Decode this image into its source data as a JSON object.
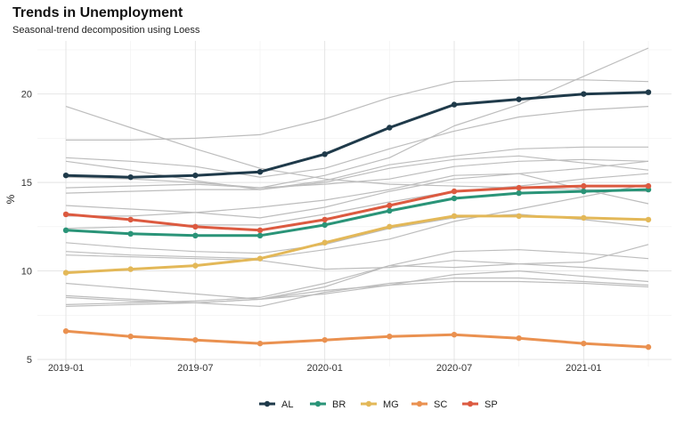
{
  "chart_data": {
    "type": "line",
    "title": "Trends in Unemployment",
    "subtitle": "Seasonal-trend decomposition using Loess",
    "xlabel": "",
    "ylabel": "%",
    "x": [
      "2019-01",
      "2019-04",
      "2019-07",
      "2019-10",
      "2020-01",
      "2020-04",
      "2020-07",
      "2020-10",
      "2021-01",
      "2021-04"
    ],
    "x_ticks": [
      "2019-01",
      "2019-07",
      "2020-01",
      "2020-07",
      "2021-01"
    ],
    "y_ticks": [
      5,
      10,
      15,
      20
    ],
    "ylim": [
      4.6,
      23.0
    ],
    "grid": true,
    "legend_position": "bottom",
    "series": [
      {
        "name": "AL",
        "color": "#1f3a4a",
        "values": [
          15.4,
          15.3,
          15.4,
          15.6,
          16.6,
          18.1,
          19.4,
          19.7,
          20.0,
          20.1
        ]
      },
      {
        "name": "BR",
        "color": "#2a9478",
        "values": [
          12.3,
          12.1,
          12.0,
          12.0,
          12.6,
          13.4,
          14.1,
          14.4,
          14.5,
          14.6
        ]
      },
      {
        "name": "MG",
        "color": "#e3b858",
        "values": [
          9.9,
          10.1,
          10.3,
          10.7,
          11.6,
          12.5,
          13.1,
          13.1,
          13.0,
          12.9
        ]
      },
      {
        "name": "SC",
        "color": "#ea9150",
        "values": [
          6.6,
          6.3,
          6.1,
          5.9,
          6.1,
          6.3,
          6.4,
          6.2,
          5.9,
          5.7
        ]
      },
      {
        "name": "SP",
        "color": "#dc5a40",
        "values": [
          13.2,
          12.9,
          12.5,
          12.3,
          12.9,
          13.7,
          14.5,
          14.7,
          14.8,
          14.8
        ]
      }
    ],
    "background_series": [
      [
        19.3,
        18.1,
        16.9,
        15.8,
        15.2,
        14.9,
        14.8,
        14.7,
        14.6,
        14.5
      ],
      [
        17.4,
        17.4,
        17.5,
        17.7,
        18.6,
        19.8,
        20.7,
        20.8,
        20.8,
        20.7
      ],
      [
        16.4,
        16.2,
        15.9,
        15.3,
        15.8,
        16.9,
        17.9,
        18.7,
        19.1,
        19.3
      ],
      [
        16.2,
        15.7,
        15.1,
        14.6,
        15.1,
        16.0,
        16.5,
        16.9,
        17.0,
        17.0
      ],
      [
        15.3,
        15.2,
        15.0,
        14.7,
        15.4,
        16.4,
        18.2,
        19.4,
        21.0,
        22.6
      ],
      [
        14.7,
        14.8,
        14.9,
        14.7,
        14.9,
        15.2,
        15.9,
        16.2,
        16.3,
        16.2
      ],
      [
        14.4,
        14.5,
        14.6,
        14.6,
        15.0,
        15.8,
        16.3,
        16.5,
        16.1,
        15.7
      ],
      [
        13.7,
        13.5,
        13.3,
        13.0,
        13.6,
        14.5,
        15.2,
        15.5,
        15.8,
        16.2
      ],
      [
        13.1,
        13.1,
        13.3,
        13.6,
        14.0,
        14.6,
        15.4,
        15.5,
        14.6,
        13.8
      ],
      [
        12.4,
        12.5,
        12.6,
        12.6,
        13.2,
        13.9,
        14.5,
        14.8,
        15.2,
        15.5
      ],
      [
        11.6,
        11.3,
        11.1,
        11.0,
        11.5,
        12.4,
        13.0,
        13.2,
        12.9,
        12.5
      ],
      [
        11.1,
        10.9,
        10.8,
        10.7,
        11.2,
        11.8,
        12.8,
        13.5,
        14.2,
        14.9
      ],
      [
        10.9,
        10.8,
        10.7,
        10.6,
        10.1,
        10.2,
        10.6,
        10.4,
        10.2,
        10.0
      ],
      [
        9.3,
        9.0,
        8.7,
        8.4,
        9.1,
        10.3,
        11.1,
        11.2,
        11.0,
        10.7
      ],
      [
        8.6,
        8.4,
        8.2,
        8.0,
        8.8,
        9.3,
        9.6,
        9.6,
        9.4,
        9.2
      ],
      [
        8.5,
        8.3,
        8.2,
        8.4,
        8.7,
        9.2,
        9.8,
        10.0,
        9.7,
        9.4
      ],
      [
        8.0,
        8.1,
        8.2,
        8.4,
        8.9,
        9.2,
        9.4,
        9.4,
        9.3,
        9.1
      ],
      [
        8.1,
        8.2,
        8.3,
        8.5,
        9.3,
        10.3,
        10.2,
        10.4,
        10.5,
        11.5
      ]
    ]
  }
}
